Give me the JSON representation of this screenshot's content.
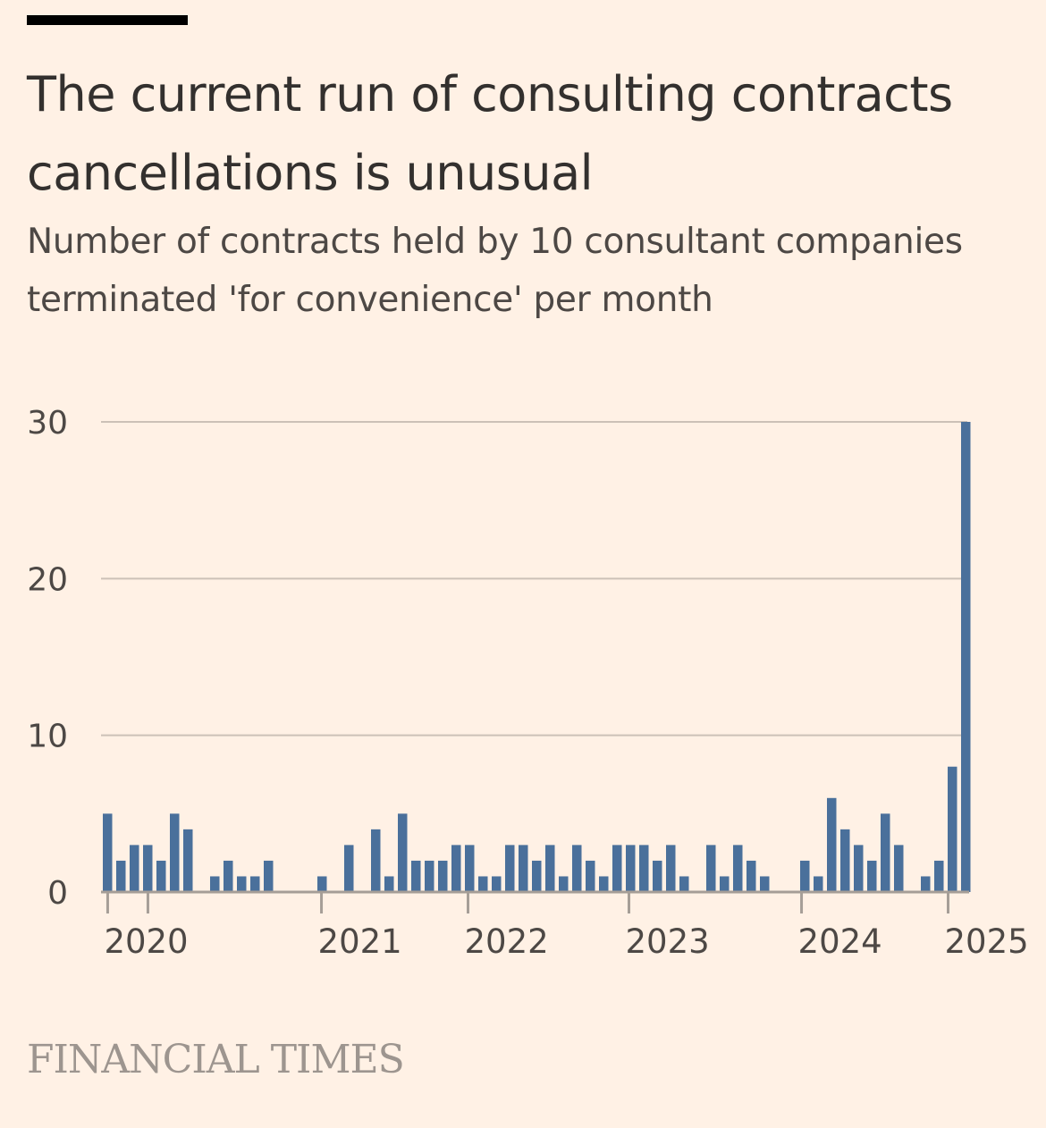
{
  "header": {
    "title": "The current run of consulting contracts cancellations is unusual",
    "subtitle": "Number of contracts held by 10 consultant companies terminated 'for convenience' per month"
  },
  "footer": {
    "brand": "FINANCIAL TIMES"
  },
  "colors": {
    "bar": "#4a709b",
    "background": "#fff1e5",
    "grid": "#ccc1b7",
    "axis": "#a69e97",
    "text": "#33302e"
  },
  "chart_data": {
    "type": "bar",
    "title": "The current run of consulting contracts cancellations is unusual",
    "subtitle": "Number of contracts held by 10 consultant companies terminated 'for convenience' per month",
    "xlabel": "",
    "ylabel": "",
    "ylim": [
      0,
      30
    ],
    "yticks": [
      0,
      10,
      20,
      30
    ],
    "grid": true,
    "xtick_labels": [
      {
        "label": "2020",
        "slot": 0.33
      },
      {
        "label": "",
        "slot": 3.33
      },
      {
        "label": "2021",
        "slot": 16.27
      },
      {
        "label": "2022",
        "slot": 27.2
      },
      {
        "label": "2023",
        "slot": 39.2
      },
      {
        "label": "2024",
        "slot": 52.07
      },
      {
        "label": "2025",
        "slot": 63.0
      }
    ],
    "values": [
      5,
      2,
      3,
      3,
      2,
      5,
      4,
      0,
      1,
      2,
      1,
      1,
      2,
      0,
      0,
      0,
      1,
      0,
      3,
      0,
      4,
      1,
      5,
      2,
      2,
      2,
      3,
      3,
      1,
      1,
      3,
      3,
      2,
      3,
      1,
      3,
      2,
      1,
      3,
      3,
      3,
      2,
      3,
      1,
      0,
      3,
      1,
      3,
      2,
      1,
      0,
      0,
      2,
      1,
      6,
      4,
      3,
      2,
      5,
      3,
      0,
      1,
      2,
      8,
      30
    ]
  }
}
